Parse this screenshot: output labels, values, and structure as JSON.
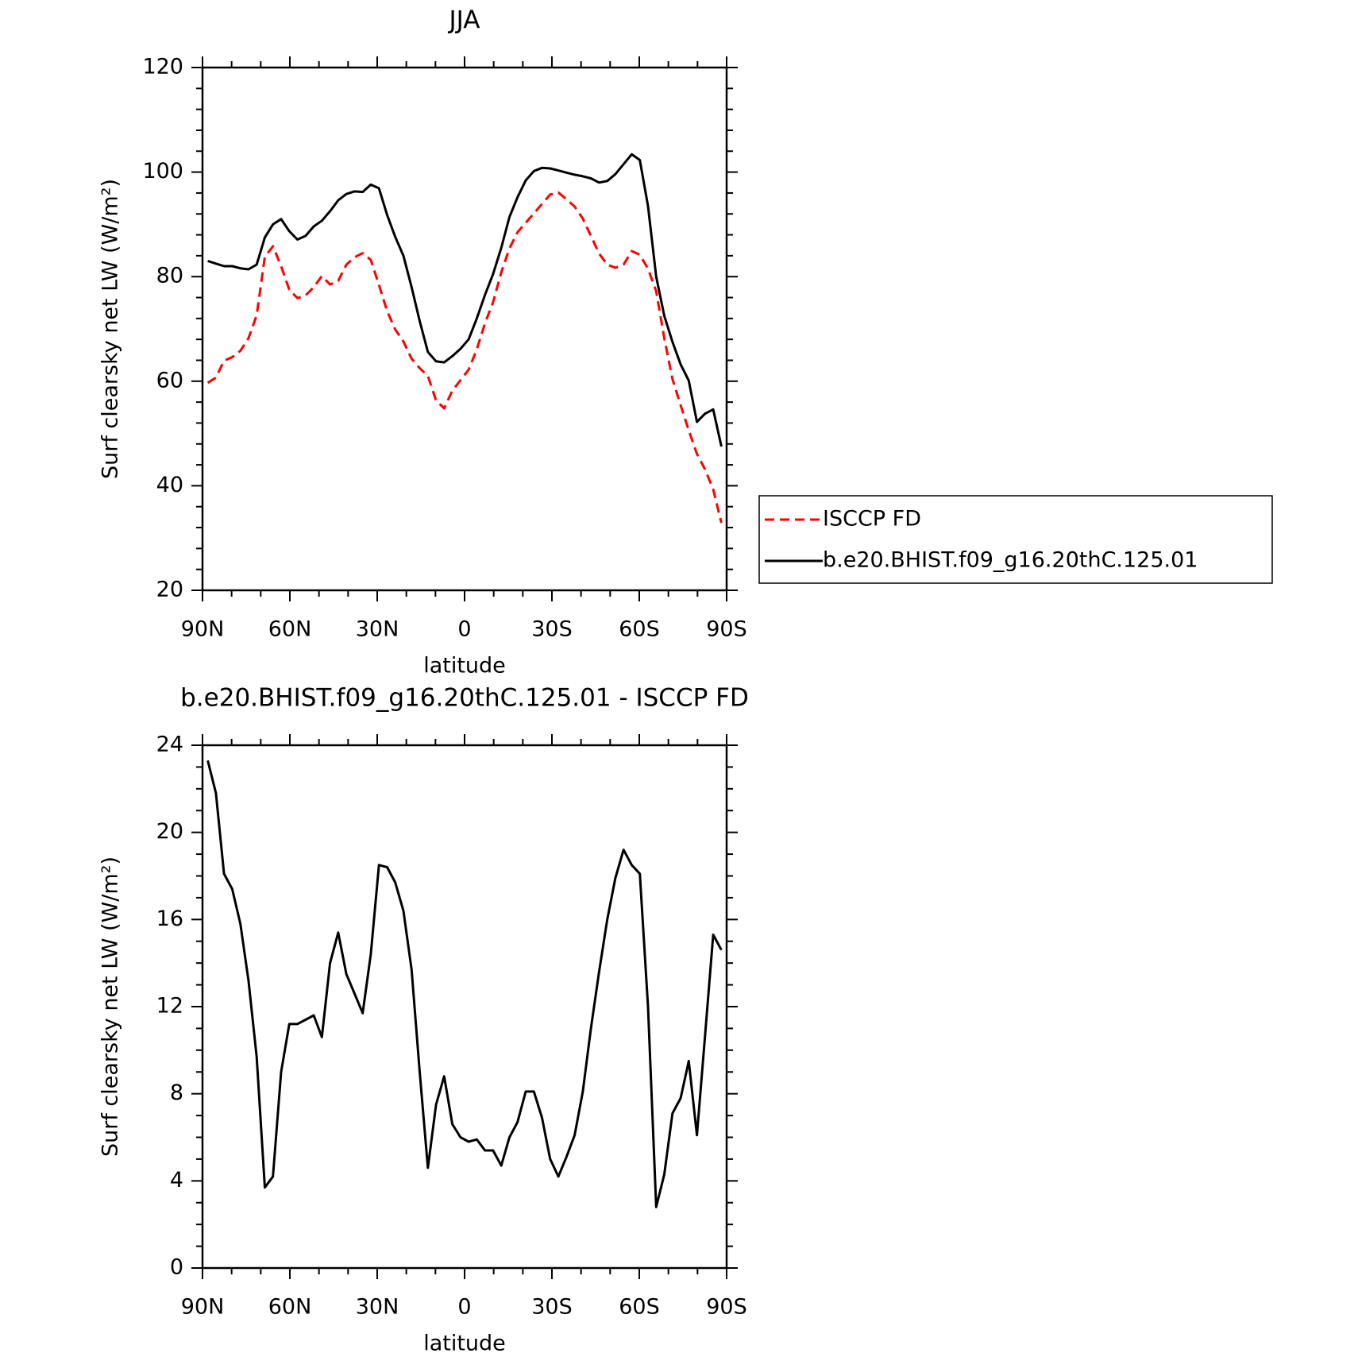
{
  "chart_data": [
    {
      "type": "line",
      "title": "JJA",
      "xlabel": "latitude",
      "ylabel": "Surf clearsky net LW (W/m²)",
      "xlim": [
        90,
        -90
      ],
      "ylim": [
        20,
        120
      ],
      "xticks": [
        {
          "value": 90,
          "label": "90N"
        },
        {
          "value": 60,
          "label": "60N"
        },
        {
          "value": 30,
          "label": "30N"
        },
        0,
        {
          "value": -30,
          "label": "30S"
        },
        {
          "value": -60,
          "label": "60S"
        },
        {
          "value": -90,
          "label": "90S"
        }
      ],
      "yticks": [
        20,
        40,
        60,
        80,
        100,
        120
      ],
      "legend": "outside-right",
      "x": [
        88.2,
        85.4,
        82.6,
        79.8,
        77.0,
        74.2,
        71.4,
        68.6,
        65.8,
        63.0,
        60.2,
        57.4,
        54.6,
        51.8,
        49.0,
        46.2,
        43.4,
        40.6,
        37.8,
        35.0,
        32.2,
        29.4,
        26.6,
        23.8,
        21.0,
        18.2,
        15.4,
        12.6,
        9.8,
        7.0,
        4.2,
        1.4,
        -1.4,
        -4.2,
        -7.0,
        -9.8,
        -12.6,
        -15.4,
        -18.2,
        -21.0,
        -23.8,
        -26.6,
        -29.4,
        -32.2,
        -35.0,
        -37.8,
        -40.6,
        -43.4,
        -46.2,
        -49.0,
        -51.8,
        -54.6,
        -57.4,
        -60.2,
        -63.0,
        -65.8,
        -68.6,
        -71.4,
        -74.2,
        -77.0,
        -79.8,
        -82.6,
        -85.4,
        -88.2
      ],
      "series": [
        {
          "name": "ISCCP FD",
          "color": "#ff0000",
          "style": "dashed",
          "values": [
            59.7,
            60.7,
            63.9,
            64.6,
            65.8,
            68.2,
            72.6,
            83.8,
            85.8,
            82.0,
            77.5,
            75.9,
            76.4,
            78.0,
            80.1,
            78.5,
            79.2,
            82.3,
            83.7,
            84.5,
            83.2,
            78.4,
            73.4,
            69.9,
            67.6,
            64.3,
            62.5,
            61.0,
            56.3,
            54.8,
            58.2,
            60.2,
            62.2,
            66.1,
            71.1,
            75.1,
            80.8,
            85.4,
            88.5,
            90.3,
            92.1,
            93.9,
            95.7,
            96.1,
            94.8,
            93.4,
            91.1,
            87.8,
            84.4,
            82.3,
            81.7,
            82.3,
            84.9,
            84.2,
            81.5,
            77.2,
            68.2,
            60.4,
            55.4,
            50.6,
            46.1,
            43.1,
            39.3,
            32.9
          ]
        },
        {
          "name": "b.e20.BHIST.f09_g16.20thC.125.01",
          "color": "#000000",
          "style": "solid",
          "values": [
            83.0,
            82.5,
            82.0,
            82.0,
            81.6,
            81.4,
            82.3,
            87.5,
            90.0,
            91.0,
            88.7,
            87.1,
            87.8,
            89.6,
            90.7,
            92.5,
            94.6,
            95.8,
            96.3,
            96.2,
            97.6,
            96.9,
            91.8,
            87.6,
            84.0,
            78.0,
            71.5,
            65.6,
            63.8,
            63.6,
            64.8,
            66.2,
            68.0,
            72.0,
            76.5,
            80.5,
            85.5,
            91.4,
            95.2,
            98.4,
            100.2,
            100.8,
            100.7,
            100.3,
            99.9,
            99.5,
            99.2,
            98.8,
            98.0,
            98.3,
            99.6,
            101.5,
            103.4,
            102.3,
            93.5,
            80.0,
            72.5,
            67.5,
            63.2,
            60.1,
            52.2,
            53.8,
            54.6,
            47.5
          ]
        }
      ]
    },
    {
      "type": "line",
      "title": "b.e20.BHIST.f09_g16.20thC.125.01 - ISCCP FD",
      "xlabel": "latitude",
      "ylabel": "Surf clearsky net LW (W/m²)",
      "xlim": [
        90,
        -90
      ],
      "ylim": [
        0,
        24
      ],
      "xticks": [
        {
          "value": 90,
          "label": "90N"
        },
        {
          "value": 60,
          "label": "60N"
        },
        {
          "value": 30,
          "label": "30N"
        },
        0,
        {
          "value": -30,
          "label": "30S"
        },
        {
          "value": -60,
          "label": "60S"
        },
        {
          "value": -90,
          "label": "90S"
        }
      ],
      "yticks": [
        0,
        4,
        8,
        12,
        16,
        20,
        24
      ],
      "x": [
        88.2,
        85.4,
        82.6,
        79.8,
        77.0,
        74.2,
        71.4,
        68.6,
        65.8,
        63.0,
        60.2,
        57.4,
        54.6,
        51.8,
        49.0,
        46.2,
        43.4,
        40.6,
        37.8,
        35.0,
        32.2,
        29.4,
        26.6,
        23.8,
        21.0,
        18.2,
        15.4,
        12.6,
        9.8,
        7.0,
        4.2,
        1.4,
        -1.4,
        -4.2,
        -7.0,
        -9.8,
        -12.6,
        -15.4,
        -18.2,
        -21.0,
        -23.8,
        -26.6,
        -29.4,
        -32.2,
        -35.0,
        -37.8,
        -40.6,
        -43.4,
        -46.2,
        -49.0,
        -51.8,
        -54.6,
        -57.4,
        -60.2,
        -63.0,
        -65.8,
        -68.6,
        -71.4,
        -74.2,
        -77.0,
        -79.8,
        -82.6,
        -85.4,
        -88.2
      ],
      "series": [
        {
          "color": "#000000",
          "style": "solid",
          "values": [
            23.3,
            21.8,
            18.1,
            17.4,
            15.8,
            13.2,
            9.7,
            3.7,
            4.2,
            9.0,
            11.2,
            11.2,
            11.4,
            11.6,
            10.6,
            14.0,
            15.4,
            13.5,
            12.6,
            11.7,
            14.4,
            18.5,
            18.4,
            17.7,
            16.4,
            13.7,
            9.0,
            4.6,
            7.5,
            8.8,
            6.6,
            6.0,
            5.8,
            5.9,
            5.4,
            5.4,
            4.7,
            6.0,
            6.7,
            8.1,
            8.1,
            6.9,
            5.0,
            4.2,
            5.1,
            6.1,
            8.1,
            11.0,
            13.6,
            16.0,
            17.9,
            19.2,
            18.5,
            18.1,
            12.0,
            2.8,
            4.3,
            7.1,
            7.8,
            9.5,
            6.1,
            10.7,
            15.3,
            14.6
          ]
        }
      ]
    }
  ]
}
